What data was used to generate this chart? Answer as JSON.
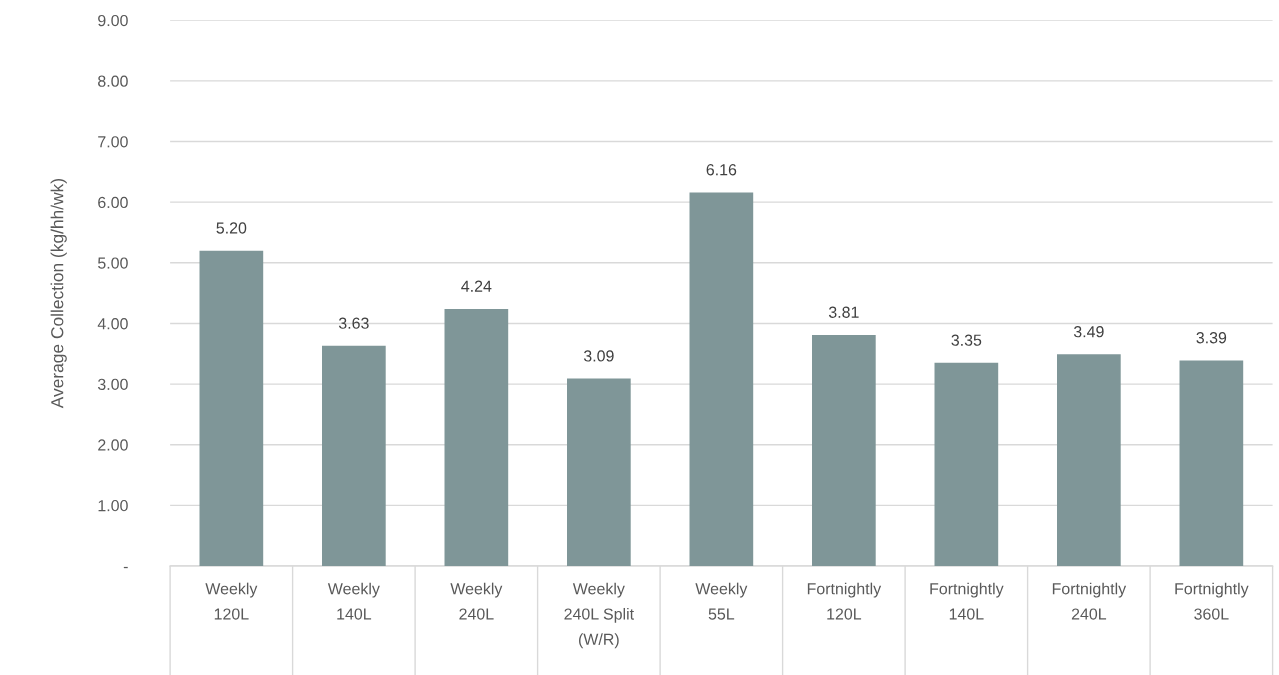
{
  "chart_data": {
    "type": "bar",
    "ylabel": "Average Collection (kg/hh/wk)",
    "categories": [
      "Weekly\n120L",
      "Weekly\n140L",
      "Weekly\n240L",
      "Weekly\n240L Split\n(W/R)",
      "Weekly\n55L",
      "Fortnightly\n120L",
      "Fortnightly\n140L",
      "Fortnightly\n240L",
      "Fortnightly\n360L"
    ],
    "values": [
      5.2,
      3.63,
      4.24,
      3.09,
      6.16,
      3.81,
      3.35,
      3.49,
      3.39
    ],
    "value_labels": [
      "5.20",
      "3.63",
      "4.24",
      "3.09",
      "6.16",
      "3.81",
      "3.35",
      "3.49",
      "3.39"
    ],
    "color": "#7f9698",
    "ylim": [
      0,
      9
    ],
    "yticks": [
      {
        "value": 0,
        "label": "-"
      },
      {
        "value": 1,
        "label": "1.00"
      },
      {
        "value": 2,
        "label": "2.00"
      },
      {
        "value": 3,
        "label": "3.00"
      },
      {
        "value": 4,
        "label": "4.00"
      },
      {
        "value": 5,
        "label": "5.00"
      },
      {
        "value": 6,
        "label": "6.00"
      },
      {
        "value": 7,
        "label": "7.00"
      },
      {
        "value": 8,
        "label": "8.00"
      },
      {
        "value": 9,
        "label": "9.00"
      }
    ],
    "grid": "y"
  }
}
